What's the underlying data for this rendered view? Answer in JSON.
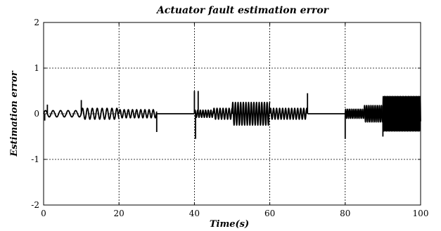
{
  "chart_data": {
    "type": "line",
    "title": "Actuator fault estimation error",
    "xlabel": "Time(s)",
    "ylabel": "Estimation error",
    "xlim": [
      0,
      100
    ],
    "ylim": [
      -2,
      2
    ],
    "xticks": [
      0,
      20,
      40,
      60,
      80,
      100
    ],
    "yticks": [
      -2,
      -1,
      0,
      1,
      2
    ],
    "xtick_labels": [
      "0",
      "20",
      "40",
      "60",
      "80",
      "100"
    ],
    "ytick_labels": [
      "-2",
      "-1",
      "0",
      "1",
      "2"
    ],
    "grid": true,
    "series": [
      {
        "segments": [
          {
            "t0": 0,
            "t1": 10,
            "amplitude": 0.07,
            "period": 2.0
          },
          {
            "t0": 10,
            "t1": 20,
            "amplitude": 0.12,
            "period": 1.3
          },
          {
            "t0": 20,
            "t1": 30,
            "amplitude": 0.09,
            "period": 1.1
          },
          {
            "t0": 30,
            "t1": 40,
            "amplitude": 0.0,
            "period": 1.0
          },
          {
            "t0": 40,
            "t1": 45,
            "amplitude": 0.08,
            "period": 0.7
          },
          {
            "t0": 45,
            "t1": 50,
            "amplitude": 0.12,
            "period": 0.8
          },
          {
            "t0": 50,
            "t1": 60,
            "amplitude": 0.25,
            "period": 0.7
          },
          {
            "t0": 60,
            "t1": 70,
            "amplitude": 0.12,
            "period": 0.8
          },
          {
            "t0": 70,
            "t1": 80,
            "amplitude": 0.0,
            "period": 1.0
          },
          {
            "t0": 80,
            "t1": 85,
            "amplitude": 0.1,
            "period": 0.5
          },
          {
            "t0": 85,
            "t1": 90,
            "amplitude": 0.18,
            "period": 0.5
          },
          {
            "t0": 90,
            "t1": 100,
            "amplitude": 0.38,
            "period": 0.35
          }
        ],
        "spikes": [
          {
            "x": 0.3,
            "y": -0.15
          },
          {
            "x": 1.0,
            "y": 0.2
          },
          {
            "x": 10.0,
            "y": 0.3
          },
          {
            "x": 30.0,
            "y": -0.4
          },
          {
            "x": 40.0,
            "y": 0.5
          },
          {
            "x": 40.3,
            "y": -0.55
          },
          {
            "x": 41.0,
            "y": 0.5
          },
          {
            "x": 70.0,
            "y": 0.45
          },
          {
            "x": 80.0,
            "y": -0.55
          },
          {
            "x": 90.0,
            "y": -0.5
          }
        ]
      }
    ]
  }
}
